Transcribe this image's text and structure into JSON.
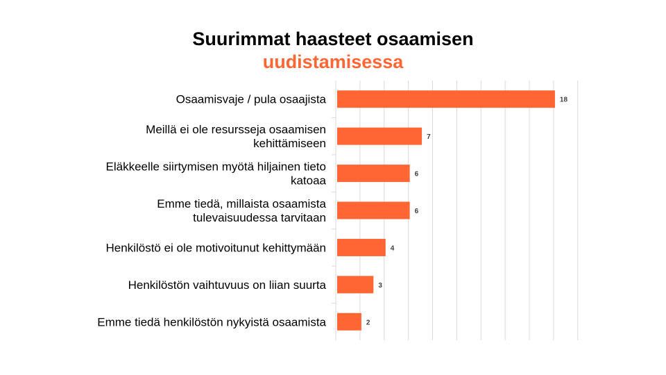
{
  "chart_data": {
    "type": "bar",
    "orientation": "horizontal",
    "title_line1": "Suurimmat haasteet osaamisen",
    "title_line2": "uudistamisessa",
    "categories": [
      [
        "Osaamisvaje / pula osaajista"
      ],
      [
        "Meillä ei ole resursseja osaamisen",
        "kehittämiseen"
      ],
      [
        "Eläkkeelle siirtymisen myötä hiljainen tieto",
        "katoaa"
      ],
      [
        "Emme tiedä, millaista osaamista",
        "tulevaisuudessa tarvitaan"
      ],
      [
        "Henkilöstö ei ole motivoitunut kehittymään"
      ],
      [
        "Henkilöstön vaihtuvuus on liian suurta"
      ],
      [
        "Emme tiedä henkilöstön nykyistä osaamista"
      ]
    ],
    "values": [
      18,
      7,
      6,
      6,
      4,
      3,
      2
    ],
    "value_labels": [
      "18",
      "7",
      "6",
      "6",
      "4",
      "3",
      "2"
    ],
    "xlim": [
      0,
      20
    ],
    "grid": true,
    "bar_color": "#ff6633",
    "grid_color": "#d9d9d9"
  }
}
